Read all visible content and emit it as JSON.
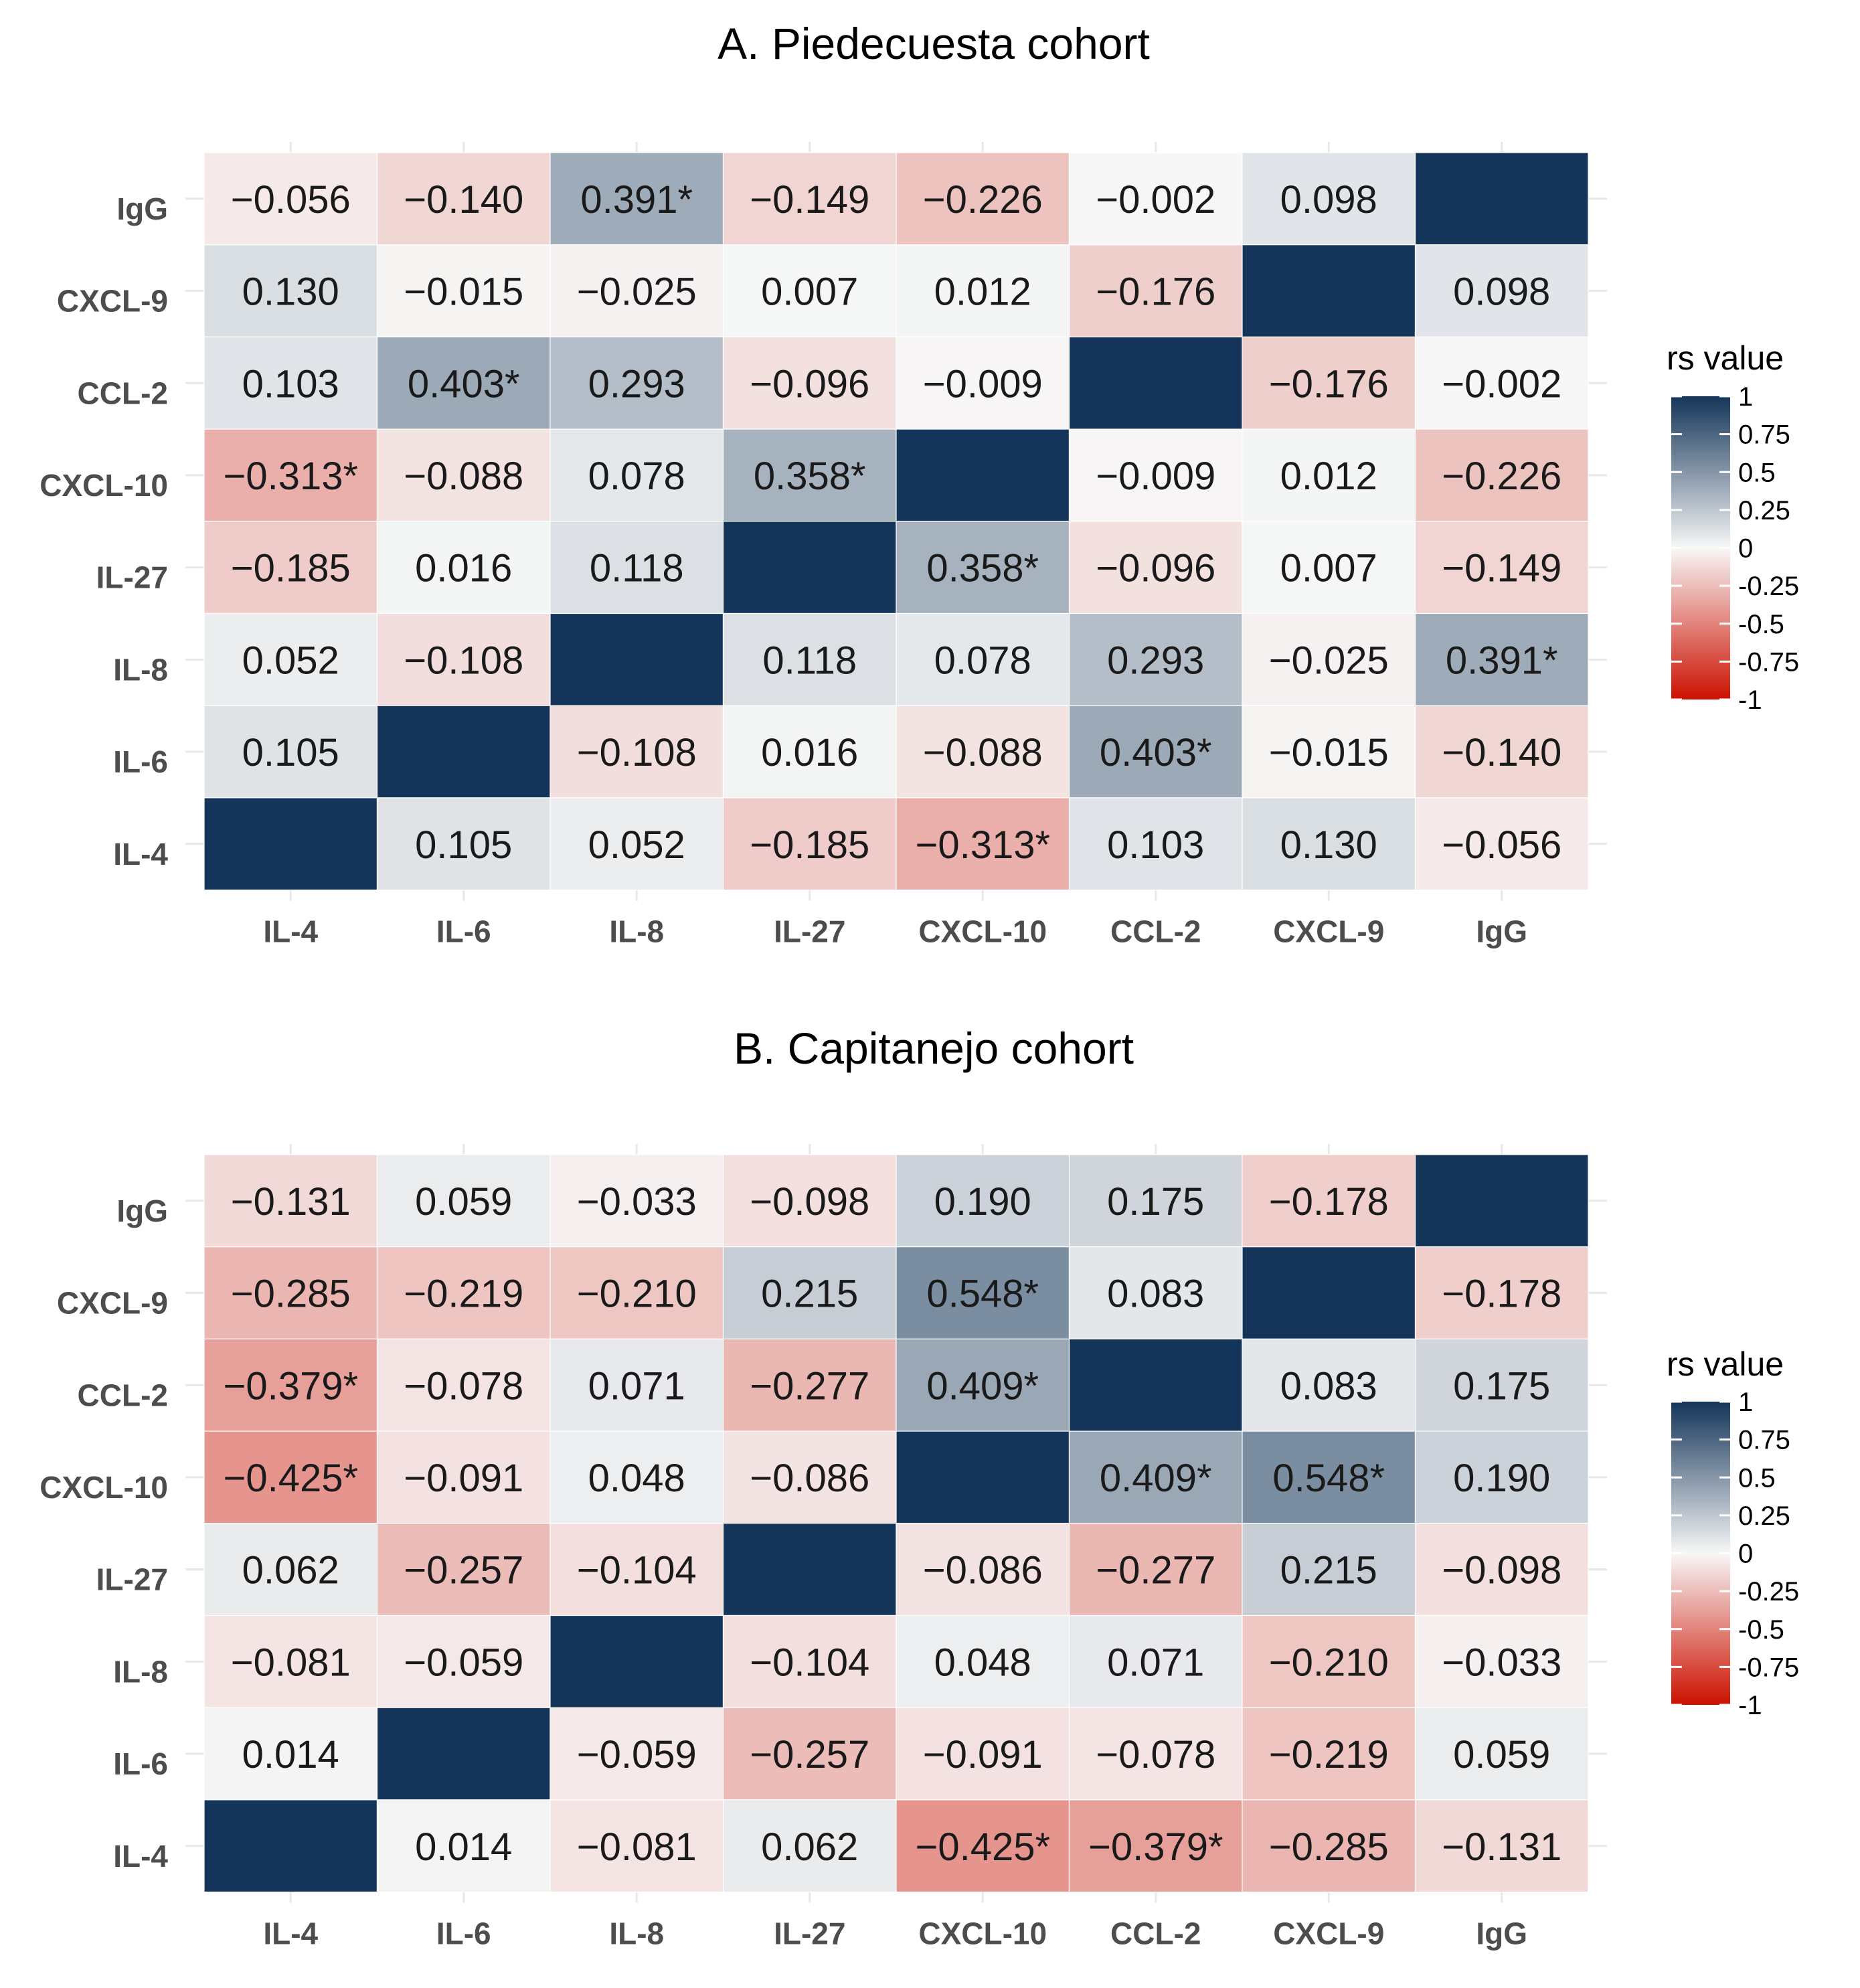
{
  "chart_data": [
    {
      "type": "heatmap",
      "title": "A. Piedecuesta cohort",
      "x_categories": [
        "IL-4",
        "IL-6",
        "IL-8",
        "IL-27",
        "CXCL-10",
        "CCL-2",
        "CXCL-9",
        "IgG"
      ],
      "y_categories": [
        "IgG",
        "CXCL-9",
        "CCL-2",
        "CXCL-10",
        "IL-27",
        "IL-8",
        "IL-6",
        "IL-4"
      ],
      "values": [
        [
          -0.056,
          -0.14,
          0.391,
          -0.149,
          -0.226,
          -0.002,
          0.098,
          1
        ],
        [
          0.13,
          -0.015,
          -0.025,
          0.007,
          0.012,
          -0.176,
          1,
          0.098
        ],
        [
          0.103,
          0.403,
          0.293,
          -0.096,
          -0.009,
          1,
          -0.176,
          -0.002
        ],
        [
          -0.313,
          -0.088,
          0.078,
          0.358,
          1,
          -0.009,
          0.012,
          -0.226
        ],
        [
          -0.185,
          0.016,
          0.118,
          1,
          0.358,
          -0.096,
          0.007,
          -0.149
        ],
        [
          0.052,
          -0.108,
          1,
          0.118,
          0.078,
          0.293,
          -0.025,
          0.391
        ],
        [
          0.105,
          1,
          -0.108,
          0.016,
          -0.088,
          0.403,
          -0.015,
          -0.14
        ],
        [
          1,
          0.105,
          0.052,
          -0.185,
          -0.313,
          0.103,
          0.13,
          -0.056
        ]
      ],
      "labels": [
        [
          "−0.056",
          "−0.140",
          "0.391*",
          "−0.149",
          "−0.226",
          "−0.002",
          "0.098",
          ""
        ],
        [
          "0.130",
          "−0.015",
          "−0.025",
          "0.007",
          "0.012",
          "−0.176",
          "",
          "0.098"
        ],
        [
          "0.103",
          "0.403*",
          "0.293",
          "−0.096",
          "−0.009",
          "",
          "−0.176",
          "−0.002"
        ],
        [
          "−0.313*",
          "−0.088",
          "0.078",
          "0.358*",
          "",
          "−0.009",
          "0.012",
          "−0.226"
        ],
        [
          "−0.185",
          "0.016",
          "0.118",
          "",
          "0.358*",
          "−0.096",
          "0.007",
          "−0.149"
        ],
        [
          "0.052",
          "−0.108",
          "",
          "0.118",
          "0.078",
          "0.293",
          "−0.025",
          "0.391*"
        ],
        [
          "0.105",
          "",
          "−0.108",
          "0.016",
          "−0.088",
          "0.403*",
          "−0.015",
          "−0.140"
        ],
        [
          "",
          "0.105",
          "0.052",
          "−0.185",
          "−0.313*",
          "0.103",
          "0.130",
          "−0.056"
        ]
      ],
      "legend": {
        "title": "rs value",
        "ticks": [
          "1",
          "0.75",
          "0.5",
          "0.25",
          "0",
          "-0.25",
          "-0.5",
          "-0.75",
          "-1"
        ],
        "range": [
          -1,
          1
        ],
        "placement": "right"
      }
    },
    {
      "type": "heatmap",
      "title": "B. Capitanejo cohort",
      "x_categories": [
        "IL-4",
        "IL-6",
        "IL-8",
        "IL-27",
        "CXCL-10",
        "CCL-2",
        "CXCL-9",
        "IgG"
      ],
      "y_categories": [
        "IgG",
        "CXCL-9",
        "CCL-2",
        "CXCL-10",
        "IL-27",
        "IL-8",
        "IL-6",
        "IL-4"
      ],
      "values": [
        [
          -0.131,
          0.059,
          -0.033,
          -0.098,
          0.19,
          0.175,
          -0.178,
          1
        ],
        [
          -0.285,
          -0.219,
          -0.21,
          0.215,
          0.548,
          0.083,
          1,
          -0.178
        ],
        [
          -0.379,
          -0.078,
          0.071,
          -0.277,
          0.409,
          1,
          0.083,
          0.175
        ],
        [
          -0.425,
          -0.091,
          0.048,
          -0.086,
          1,
          0.409,
          0.548,
          0.19
        ],
        [
          0.062,
          -0.257,
          -0.104,
          1,
          -0.086,
          -0.277,
          0.215,
          -0.098
        ],
        [
          -0.081,
          -0.059,
          1,
          -0.104,
          0.048,
          0.071,
          -0.21,
          -0.033
        ],
        [
          0.014,
          1,
          -0.059,
          -0.257,
          -0.091,
          -0.078,
          -0.219,
          0.059
        ],
        [
          1,
          0.014,
          -0.081,
          0.062,
          -0.425,
          -0.379,
          -0.285,
          -0.131
        ]
      ],
      "labels": [
        [
          "−0.131",
          "0.059",
          "−0.033",
          "−0.098",
          "0.190",
          "0.175",
          "−0.178",
          ""
        ],
        [
          "−0.285",
          "−0.219",
          "−0.210",
          "0.215",
          "0.548*",
          "0.083",
          "",
          "−0.178"
        ],
        [
          "−0.379*",
          "−0.078",
          "0.071",
          "−0.277",
          "0.409*",
          "",
          "0.083",
          "0.175"
        ],
        [
          "−0.425*",
          "−0.091",
          "0.048",
          "−0.086",
          "",
          "0.409*",
          "0.548*",
          "0.190"
        ],
        [
          "0.062",
          "−0.257",
          "−0.104",
          "",
          "−0.086",
          "−0.277",
          "0.215",
          "−0.098"
        ],
        [
          "−0.081",
          "−0.059",
          "",
          "−0.104",
          "0.048",
          "0.071",
          "−0.210",
          "−0.033"
        ],
        [
          "0.014",
          "",
          "−0.059",
          "−0.257",
          "−0.091",
          "−0.078",
          "−0.219",
          "0.059"
        ],
        [
          "",
          "0.014",
          "−0.081",
          "0.062",
          "−0.425*",
          "−0.379*",
          "−0.285",
          "−0.131"
        ]
      ],
      "legend": {
        "title": "rs value",
        "ticks": [
          "1",
          "0.75",
          "0.5",
          "0.25",
          "0",
          "-0.25",
          "-0.5",
          "-0.75",
          "-1"
        ],
        "range": [
          -1,
          1
        ],
        "placement": "right"
      }
    }
  ],
  "colors": {
    "high": "#143559",
    "mid": "#f7f7f7",
    "low": "#cc1100",
    "grid": "#e8e8e8",
    "axis_text": "#4d4d4d"
  }
}
